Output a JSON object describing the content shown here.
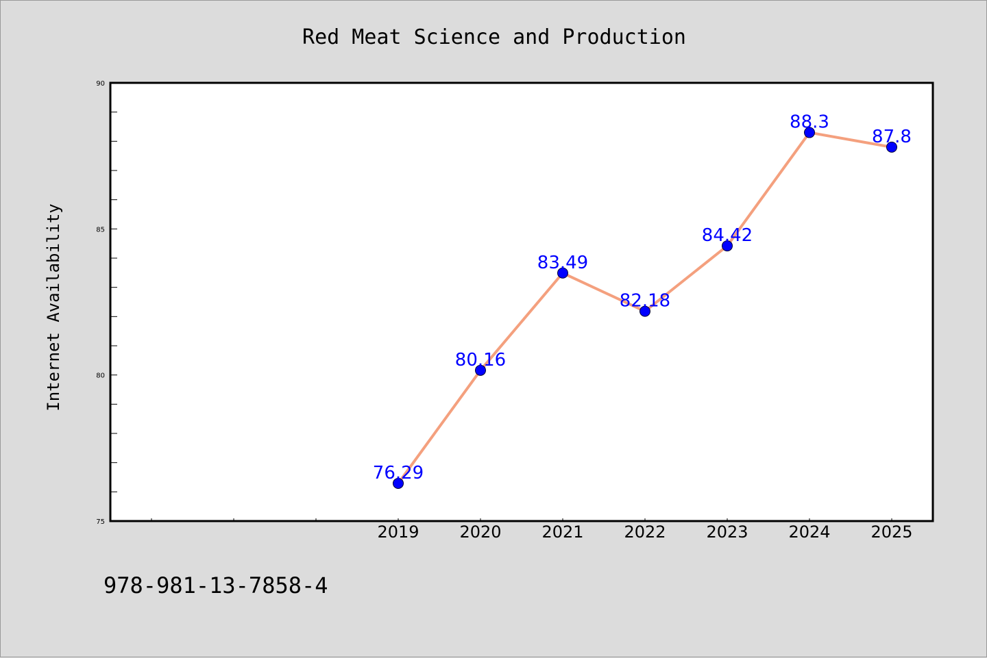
{
  "chart_data": {
    "type": "line",
    "title": "Red Meat Science and Production",
    "xlabel": "",
    "ylabel": "Internet Availability",
    "categories": [
      "2019",
      "2020",
      "2021",
      "2022",
      "2023",
      "2024",
      "2025"
    ],
    "series": [
      {
        "values": [
          76.29,
          80.16,
          83.49,
          82.18,
          84.42,
          88.3,
          87.8
        ]
      }
    ],
    "data_labels": [
      "76.29",
      "80.16",
      "83.49",
      "82.18",
      "84.42",
      "88.3",
      "87.8"
    ],
    "ylim": [
      75,
      90
    ],
    "yticks": [
      "75",
      "80",
      "85",
      "90"
    ],
    "grid": false,
    "colors": {
      "line": "#f4a07e",
      "marker": "#0000ff",
      "label": "#0000ff",
      "background": "#dcdcdc",
      "plot": "#ffffff"
    }
  },
  "footnote": "978-981-13-7858-4"
}
